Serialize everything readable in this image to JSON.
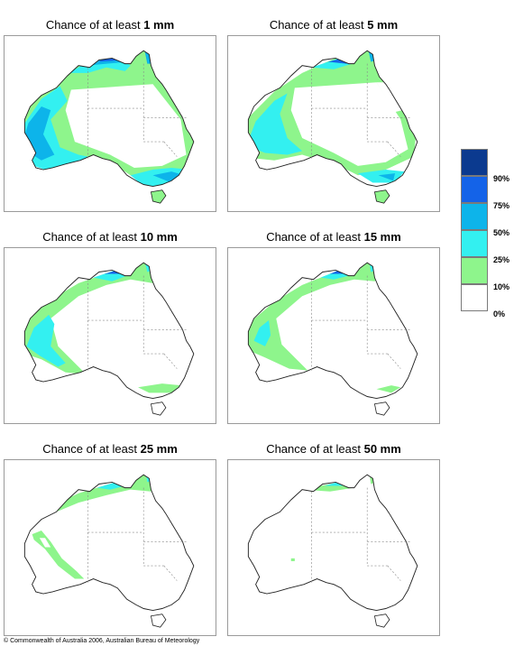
{
  "panels": [
    {
      "prefix": "Chance of at least ",
      "amount": "1 mm"
    },
    {
      "prefix": "Chance of at least ",
      "amount": "5 mm"
    },
    {
      "prefix": "Chance of at least ",
      "amount": "10 mm"
    },
    {
      "prefix": "Chance of at least ",
      "amount": "15 mm"
    },
    {
      "prefix": "Chance of at least ",
      "amount": "25 mm"
    },
    {
      "prefix": "Chance of at least ",
      "amount": "50 mm"
    }
  ],
  "legend": {
    "labels": [
      "90%",
      "75%",
      "50%",
      "25%",
      "10%",
      "0%"
    ],
    "colors": [
      "#0b3a8f",
      "#1463e8",
      "#0db4ea",
      "#33f0f0",
      "#8ef58c",
      "#ffffff"
    ]
  },
  "copyright": "© Commonwealth of Australia 2006, Australian Bureau of Meteorology"
}
